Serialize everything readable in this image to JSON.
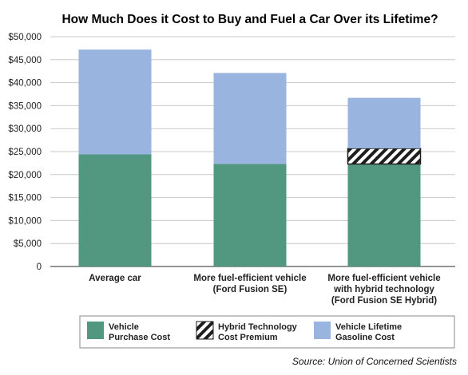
{
  "chart_data": {
    "type": "bar",
    "stacked": true,
    "title": "How Much Does it Cost to Buy and Fuel a Car Over its Lifetime?",
    "categories": [
      [
        "Average car"
      ],
      [
        "More fuel-efficient vehicle",
        "(Ford Fusion SE)"
      ],
      [
        "More fuel-efficient vehicle",
        "with hybrid technology",
        "(Ford Fusion SE Hybrid)"
      ]
    ],
    "series": [
      {
        "name": [
          "Vehicle",
          "Purchase Cost"
        ],
        "values": [
          24400,
          22300,
          22300
        ],
        "color": "#529880",
        "pattern": "solid"
      },
      {
        "name": [
          "Hybrid Technology",
          "Cost Premium"
        ],
        "values": [
          0,
          0,
          3400
        ],
        "color": "#1e1e1e",
        "pattern": "hatch"
      },
      {
        "name": [
          "Vehicle Lifetime",
          "Gasoline Cost"
        ],
        "values": [
          22800,
          19800,
          11000
        ],
        "color": "#98b4df",
        "pattern": "solid"
      }
    ],
    "ylim": [
      0,
      50000
    ],
    "ytick_labels": [
      "0",
      "$5,000",
      "$10,000",
      "$15,000",
      "$20,000",
      "$25,000",
      "$30,000",
      "$35,000",
      "$40,000",
      "$45,000",
      "$50,000"
    ],
    "grid": true,
    "legend_position": "bottom",
    "source": "Source: Union of Concerned Scientists"
  }
}
